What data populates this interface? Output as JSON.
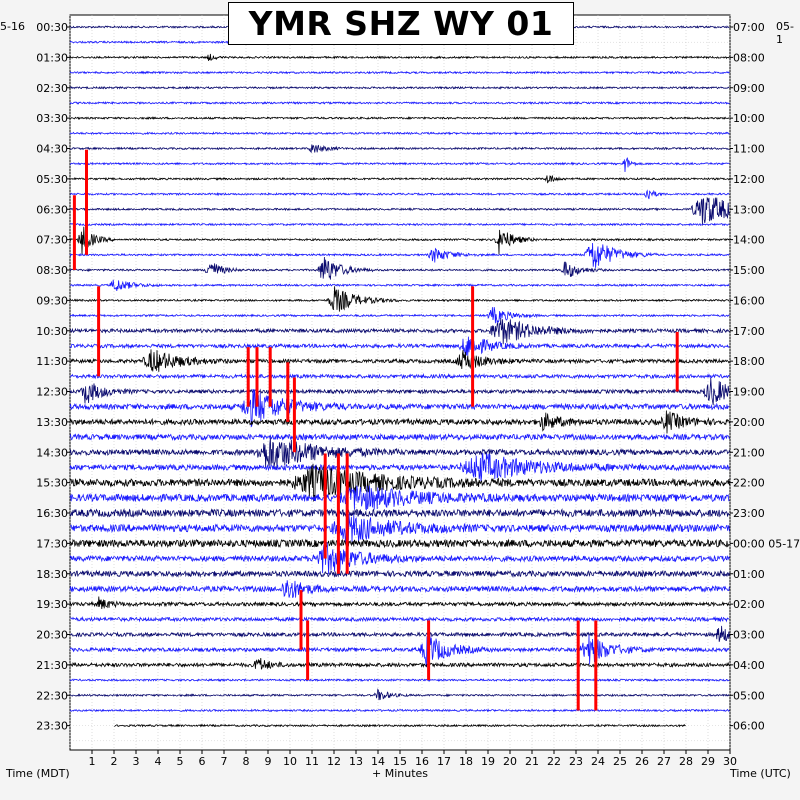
{
  "title": "YMR SHZ WY 01",
  "corner_left_date": "5-16",
  "corner_right_date": "05-1",
  "x_axis_left_label": "Time (MDT)",
  "x_axis_center_label": "+ Minutes",
  "x_axis_right_label": "Time (UTC)",
  "colors": {
    "trace_dark": "#0a0a6e",
    "trace_light": "#1a1aff",
    "trace_alt": "#000000",
    "clipped": "#ff0000",
    "grid": "#c8c8c8",
    "background": "#ffffff"
  },
  "chart_data": {
    "type": "line",
    "title": "YMR SHZ WY 01",
    "xlabel": "+ Minutes",
    "ylabel_left": "Time (MDT)",
    "ylabel_right": "Time (UTC)",
    "x_ticks": [
      1,
      2,
      3,
      4,
      5,
      6,
      7,
      8,
      9,
      10,
      11,
      12,
      13,
      14,
      15,
      16,
      17,
      18,
      19,
      20,
      21,
      22,
      23,
      24,
      25,
      26,
      27,
      28,
      29,
      30
    ],
    "xlim": [
      0,
      30
    ],
    "left_ticks": [
      "00:30",
      "01:30",
      "02:30",
      "03:30",
      "04:30",
      "05:30",
      "06:30",
      "07:30",
      "08:30",
      "09:30",
      "10:30",
      "11:30",
      "12:30",
      "13:30",
      "14:30",
      "15:30",
      "16:30",
      "17:30",
      "18:30",
      "19:30",
      "20:30",
      "21:30",
      "22:30",
      "23:30"
    ],
    "right_ticks": [
      "07:00",
      "08:00",
      "09:00",
      "10:00",
      "11:00",
      "12:00",
      "13:00",
      "14:00",
      "15:00",
      "16:00",
      "17:00",
      "18:00",
      "19:00",
      "20:00",
      "21:00",
      "22:00",
      "23:00",
      "00:00 05-17",
      "01:00",
      "02:00",
      "03:00",
      "04:00",
      "05:00",
      "06:00"
    ],
    "rows_per_hour": 2,
    "row_count": 48,
    "trace_color_cycle": [
      "trace_dark",
      "trace_light",
      "trace_alt",
      "trace_light"
    ],
    "noise_level_by_row": [
      1,
      1,
      1,
      1,
      1,
      1,
      1,
      1,
      1,
      1,
      1,
      1,
      1,
      1,
      1,
      1,
      1,
      1,
      1,
      1,
      2,
      2,
      2,
      2,
      2,
      3,
      3,
      3,
      3,
      3,
      4,
      4,
      4,
      4,
      4,
      3,
      3,
      3,
      2,
      2,
      2,
      2,
      2,
      1,
      1,
      1,
      1,
      1
    ],
    "events": [
      {
        "row": 2,
        "minute": 6.3,
        "amp": 4,
        "dur": 0.5
      },
      {
        "row": 8,
        "minute": 11,
        "amp": 6,
        "dur": 1.0
      },
      {
        "row": 9,
        "minute": 25.2,
        "amp": 12,
        "dur": 0.4
      },
      {
        "row": 10,
        "minute": 21.7,
        "amp": 6,
        "dur": 0.6
      },
      {
        "row": 11,
        "minute": 26.2,
        "amp": 10,
        "dur": 0.5
      },
      {
        "row": 12,
        "minute": 28.7,
        "amp": 18,
        "dur": 3
      },
      {
        "row": 14,
        "minute": 0.5,
        "amp": 16,
        "dur": 1
      },
      {
        "row": 14,
        "minute": 19.5,
        "amp": 14,
        "dur": 1.2
      },
      {
        "row": 15,
        "minute": 16.5,
        "amp": 8,
        "dur": 1.5
      },
      {
        "row": 15,
        "minute": 23.7,
        "amp": 18,
        "dur": 2
      },
      {
        "row": 16,
        "minute": 6.3,
        "amp": 12,
        "dur": 1
      },
      {
        "row": 16,
        "minute": 11.5,
        "amp": 16,
        "dur": 1.5
      },
      {
        "row": 16,
        "minute": 22.5,
        "amp": 10,
        "dur": 1.2
      },
      {
        "row": 17,
        "minute": 2,
        "amp": 7,
        "dur": 1.5
      },
      {
        "row": 18,
        "minute": 12,
        "amp": 14,
        "dur": 2
      },
      {
        "row": 19,
        "minute": 19.2,
        "amp": 9,
        "dur": 1.5
      },
      {
        "row": 20,
        "minute": 19.5,
        "amp": 14,
        "dur": 3
      },
      {
        "row": 21,
        "minute": 18,
        "amp": 12,
        "dur": 2
      },
      {
        "row": 22,
        "minute": 3.7,
        "amp": 12,
        "dur": 2.5
      },
      {
        "row": 22,
        "minute": 17.8,
        "amp": 10,
        "dur": 2
      },
      {
        "row": 24,
        "minute": 0.7,
        "amp": 12,
        "dur": 1.5
      },
      {
        "row": 24,
        "minute": 29.1,
        "amp": 14,
        "dur": 2
      },
      {
        "row": 25,
        "minute": 8.2,
        "amp": 18,
        "dur": 3
      },
      {
        "row": 26,
        "minute": 21.5,
        "amp": 8,
        "dur": 1.5
      },
      {
        "row": 26,
        "minute": 27.1,
        "amp": 10,
        "dur": 1.5
      },
      {
        "row": 28,
        "minute": 9,
        "amp": 18,
        "dur": 4
      },
      {
        "row": 29,
        "minute": 18.5,
        "amp": 14,
        "dur": 5
      },
      {
        "row": 30,
        "minute": 11,
        "amp": 16,
        "dur": 6
      },
      {
        "row": 31,
        "minute": 13,
        "amp": 12,
        "dur": 5
      },
      {
        "row": 33,
        "minute": 12.5,
        "amp": 14,
        "dur": 4
      },
      {
        "row": 35,
        "minute": 11.5,
        "amp": 16,
        "dur": 3
      },
      {
        "row": 37,
        "minute": 9.8,
        "amp": 12,
        "dur": 1.5
      },
      {
        "row": 38,
        "minute": 1.3,
        "amp": 6,
        "dur": 1
      },
      {
        "row": 40,
        "minute": 29.5,
        "amp": 10,
        "dur": 1
      },
      {
        "row": 41,
        "minute": 16.2,
        "amp": 16,
        "dur": 2
      },
      {
        "row": 41,
        "minute": 23.5,
        "amp": 16,
        "dur": 2
      },
      {
        "row": 42,
        "minute": 8.5,
        "amp": 8,
        "dur": 1
      },
      {
        "row": 44,
        "minute": 14,
        "amp": 6,
        "dur": 1
      }
    ],
    "clipped_spikes": [
      {
        "row": 9,
        "minute": 0.75,
        "top_row": 9,
        "bottom_row": 15
      },
      {
        "row": 12,
        "minute": 0.2,
        "top_row": 12,
        "bottom_row": 16
      },
      {
        "row": 18,
        "minute": 1.3,
        "top_row": 18,
        "bottom_row": 23
      },
      {
        "row": 18,
        "minute": 18.3,
        "top_row": 18,
        "bottom_row": 25
      },
      {
        "row": 21,
        "minute": 27.6,
        "top_row": 21,
        "bottom_row": 24
      },
      {
        "row": 22,
        "minute": 8.1,
        "top_row": 22,
        "bottom_row": 25
      },
      {
        "row": 22,
        "minute": 8.5,
        "top_row": 22,
        "bottom_row": 25
      },
      {
        "row": 22,
        "minute": 9.1,
        "top_row": 22,
        "bottom_row": 25
      },
      {
        "row": 23,
        "minute": 9.9,
        "top_row": 23,
        "bottom_row": 26
      },
      {
        "row": 24,
        "minute": 10.2,
        "top_row": 24,
        "bottom_row": 28
      },
      {
        "row": 29,
        "minute": 11.6,
        "top_row": 29,
        "bottom_row": 35
      },
      {
        "row": 29,
        "minute": 12.2,
        "top_row": 29,
        "bottom_row": 36
      },
      {
        "row": 29,
        "minute": 12.6,
        "top_row": 29,
        "bottom_row": 36
      },
      {
        "row": 38,
        "minute": 10.5,
        "top_row": 38,
        "bottom_row": 41
      },
      {
        "row": 40,
        "minute": 10.8,
        "top_row": 40,
        "bottom_row": 43
      },
      {
        "row": 40,
        "minute": 16.3,
        "top_row": 40,
        "bottom_row": 43
      },
      {
        "row": 40,
        "minute": 23.1,
        "top_row": 40,
        "bottom_row": 45
      },
      {
        "row": 40,
        "minute": 23.9,
        "top_row": 40,
        "bottom_row": 45
      }
    ],
    "grid": true,
    "data_gaps": [
      {
        "row": 1,
        "from_minute": 19.5,
        "to_minute": 30
      },
      {
        "row": 46,
        "from_minute": 0,
        "to_minute": 2
      },
      {
        "row": 46,
        "from_minute": 28,
        "to_minute": 30
      },
      {
        "row": 47,
        "from_minute": 0,
        "to_minute": 30
      }
    ]
  }
}
